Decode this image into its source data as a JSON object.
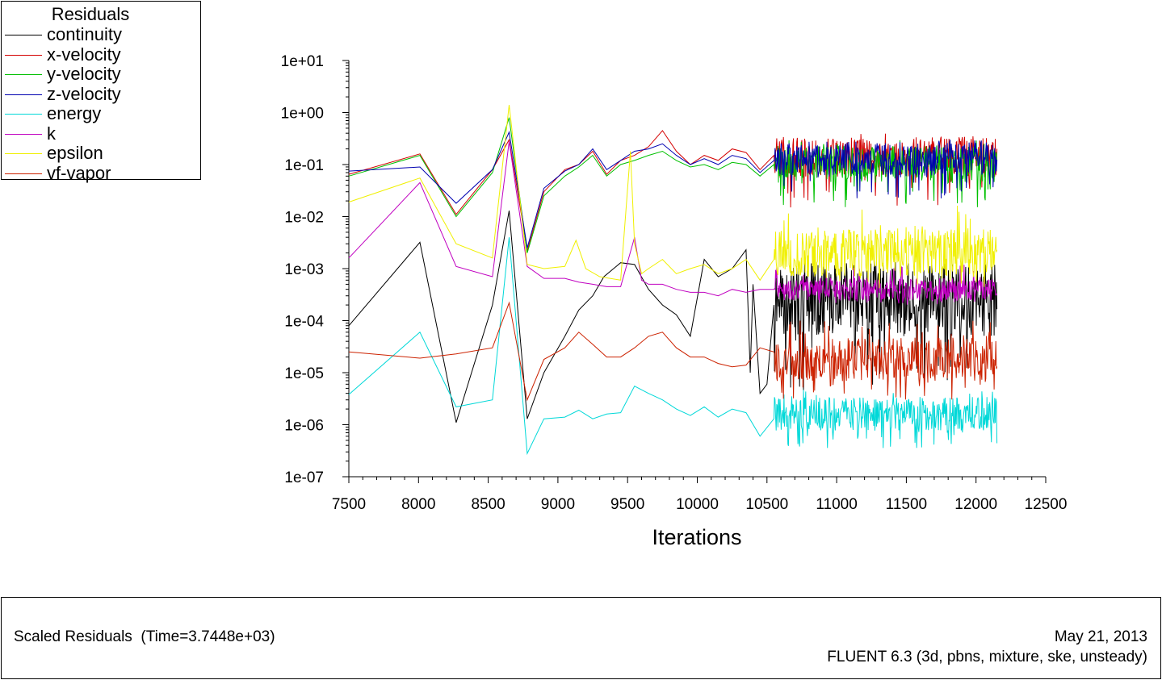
{
  "chart_data": {
    "type": "line",
    "title": "Scaled Residuals",
    "xlabel": "Iterations",
    "ylabel": "",
    "yscale": "log",
    "xlim": [
      7500,
      12500
    ],
    "ylim": [
      1e-07,
      10
    ],
    "x_ticks": [
      7500,
      8000,
      8500,
      9000,
      9500,
      10000,
      10500,
      11000,
      11500,
      12000,
      12500
    ],
    "x_tick_labels": [
      "7500",
      "8000",
      "8500",
      "9000",
      "9500",
      "10000",
      "10500",
      "11000",
      "11500",
      "12000",
      "12500"
    ],
    "y_ticks": [
      10,
      1,
      0.1,
      0.01,
      0.001,
      0.0001,
      1e-05,
      1e-06,
      1e-07
    ],
    "y_tick_labels": [
      "1e+01",
      "1e+00",
      "1e-01",
      "1e-02",
      "1e-03",
      "1e-04",
      "1e-05",
      "1e-06",
      "1e-07"
    ],
    "legend_title": "Residuals",
    "legend_position": "top-left",
    "last_iteration": 12150,
    "series": [
      {
        "name": "continuity",
        "color": "#000000",
        "x": [
          7500,
          8010,
          8270,
          8530,
          8650,
          8780,
          8900,
          9050,
          9150,
          9250,
          9330,
          9450,
          9550,
          9650,
          9750,
          9850,
          9950,
          10050,
          10150,
          10250,
          10350,
          10380,
          10400,
          10450,
          10500,
          10550
        ],
        "values": [
          8e-05,
          0.0032,
          1.1e-06,
          0.0002,
          0.013,
          1.3e-06,
          1e-05,
          5e-05,
          0.00016,
          0.0003,
          0.0007,
          0.0013,
          0.0012,
          0.0004,
          0.0002,
          0.00013,
          5e-05,
          0.0015,
          0.0007,
          0.001,
          0.0023,
          1e-05,
          0.0005,
          4e-06,
          6e-06,
          0.0002
        ],
        "noise": {
          "center": 0.00025,
          "low": 4e-06,
          "high": 0.0015
        }
      },
      {
        "name": "x-velocity",
        "color": "#d40000",
        "x": [
          7500,
          8010,
          8270,
          8530,
          8650,
          8780,
          8900,
          9050,
          9150,
          9250,
          9350,
          9450,
          9550,
          9650,
          9750,
          9850,
          9950,
          10050,
          10150,
          10250,
          10350,
          10450,
          10550
        ],
        "values": [
          0.065,
          0.16,
          0.011,
          0.08,
          0.3,
          0.0022,
          0.03,
          0.08,
          0.1,
          0.18,
          0.065,
          0.12,
          0.15,
          0.22,
          0.45,
          0.18,
          0.1,
          0.15,
          0.12,
          0.2,
          0.17,
          0.08,
          0.15
        ],
        "noise": {
          "center": 0.14,
          "low": 0.015,
          "high": 0.4
        }
      },
      {
        "name": "y-velocity",
        "color": "#00c000",
        "x": [
          7500,
          8010,
          8270,
          8530,
          8650,
          8780,
          8900,
          9050,
          9150,
          9250,
          9350,
          9450,
          9550,
          9650,
          9750,
          9850,
          9950,
          10050,
          10150,
          10250,
          10350,
          10450,
          10550
        ],
        "values": [
          0.06,
          0.15,
          0.01,
          0.07,
          0.8,
          0.002,
          0.025,
          0.06,
          0.09,
          0.15,
          0.06,
          0.1,
          0.12,
          0.15,
          0.18,
          0.12,
          0.09,
          0.1,
          0.08,
          0.11,
          0.1,
          0.06,
          0.1
        ],
        "noise": {
          "center": 0.1,
          "low": 0.015,
          "high": 0.3
        }
      },
      {
        "name": "z-velocity",
        "color": "#0000b0",
        "x": [
          7500,
          8010,
          8270,
          8530,
          8650,
          8780,
          8900,
          9050,
          9150,
          9250,
          9350,
          9450,
          9550,
          9650,
          9750,
          9850,
          9950,
          10050,
          10150,
          10250,
          10350,
          10450,
          10550
        ],
        "values": [
          0.075,
          0.09,
          0.018,
          0.08,
          0.42,
          0.0025,
          0.035,
          0.075,
          0.1,
          0.2,
          0.08,
          0.12,
          0.18,
          0.2,
          0.25,
          0.15,
          0.1,
          0.13,
          0.1,
          0.15,
          0.13,
          0.07,
          0.12
        ],
        "noise": {
          "center": 0.13,
          "low": 0.02,
          "high": 0.3
        }
      },
      {
        "name": "energy",
        "color": "#00d8d8",
        "x": [
          7500,
          8010,
          8270,
          8530,
          8650,
          8780,
          8900,
          9050,
          9150,
          9250,
          9350,
          9450,
          9550,
          9650,
          9750,
          9850,
          9950,
          10050,
          10150,
          10250,
          10350,
          10450,
          10550
        ],
        "values": [
          3.8e-06,
          6e-05,
          2.2e-06,
          3e-06,
          0.004,
          2.8e-07,
          1.3e-06,
          1.4e-06,
          1.9e-06,
          1.3e-06,
          1.6e-06,
          1.7e-06,
          5.5e-06,
          4e-06,
          3e-06,
          2e-06,
          1.5e-06,
          2.2e-06,
          1.4e-06,
          2e-06,
          1.7e-06,
          6e-07,
          1.3e-06
        ],
        "noise": {
          "center": 1.6e-06,
          "low": 3.5e-07,
          "high": 5e-06
        }
      },
      {
        "name": "k",
        "color": "#c000c0",
        "x": [
          7500,
          8010,
          8270,
          8530,
          8650,
          8780,
          8900,
          9050,
          9150,
          9250,
          9350,
          9450,
          9550,
          9600,
          9650,
          9750,
          9850,
          9950,
          10050,
          10150,
          10250,
          10350,
          10450,
          10550
        ],
        "values": [
          0.0016,
          0.045,
          0.0011,
          0.0007,
          0.28,
          0.0011,
          0.00065,
          0.00065,
          0.00055,
          0.0005,
          0.00045,
          0.00045,
          0.004,
          0.0006,
          0.0005,
          0.0005,
          0.0004,
          0.00035,
          0.00035,
          0.0003,
          0.0004,
          0.00035,
          0.0004,
          0.0004
        ],
        "noise": {
          "center": 0.0004,
          "low": 0.0002,
          "high": 0.0012
        }
      },
      {
        "name": "epsilon",
        "color": "#f0f000",
        "x": [
          7500,
          8010,
          8270,
          8530,
          8650,
          8780,
          8900,
          9050,
          9130,
          9200,
          9300,
          9450,
          9520,
          9550,
          9600,
          9650,
          9750,
          9850,
          9950,
          10050,
          10150,
          10250,
          10350,
          10450,
          10550
        ],
        "values": [
          0.019,
          0.055,
          0.003,
          0.0016,
          1.4,
          0.0012,
          0.001,
          0.0011,
          0.0035,
          0.001,
          0.0007,
          0.0006,
          0.18,
          0.003,
          0.0008,
          0.001,
          0.0015,
          0.0008,
          0.001,
          0.0012,
          0.0008,
          0.001,
          0.0015,
          0.0006,
          0.0015
        ],
        "noise": {
          "center": 0.002,
          "low": 0.0004,
          "high": 0.018
        }
      },
      {
        "name": "vf-vapor",
        "color": "#cc2200",
        "x": [
          7500,
          8010,
          8270,
          8530,
          8650,
          8780,
          8900,
          9050,
          9150,
          9250,
          9350,
          9450,
          9550,
          9650,
          9750,
          9850,
          9950,
          10050,
          10150,
          10250,
          10350,
          10450,
          10550
        ],
        "values": [
          2.5e-05,
          1.9e-05,
          2.3e-05,
          3e-05,
          0.00022,
          3e-06,
          1.8e-05,
          3e-05,
          6e-05,
          3.5e-05,
          2e-05,
          2e-05,
          3e-05,
          5e-05,
          6e-05,
          3e-05,
          2e-05,
          2e-05,
          1.5e-05,
          1.3e-05,
          1.4e-05,
          3e-05,
          2.5e-05
        ],
        "noise": {
          "center": 1.8e-05,
          "low": 3e-06,
          "high": 0.0001
        }
      }
    ]
  },
  "footer": {
    "left": "Scaled Residuals  (Time=3.7448e+03)",
    "date": "May 21, 2013",
    "version": "FLUENT 6.3 (3d, pbns, mixture, ske, unsteady)"
  }
}
